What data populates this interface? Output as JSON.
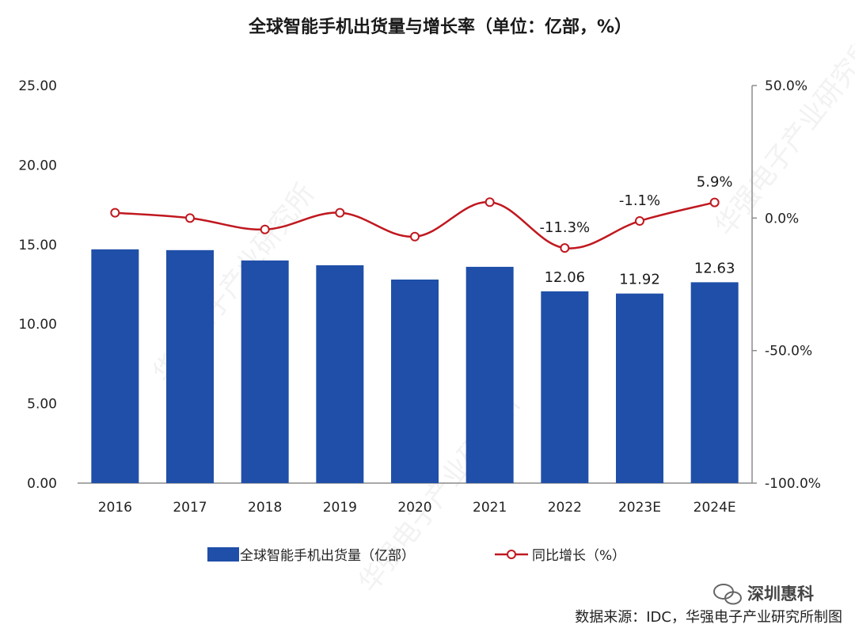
{
  "chart_data": {
    "type": "bar",
    "title": "全球智能手机出货量与增长率（单位：亿部，%）",
    "categories": [
      "2016",
      "2017",
      "2018",
      "2019",
      "2020",
      "2021",
      "2022",
      "2023E",
      "2024E"
    ],
    "series": [
      {
        "name": "全球智能手机出货量（亿部）",
        "type": "bar",
        "axis": "left",
        "color": "#1f4fa8",
        "values": [
          14.7,
          14.65,
          14.0,
          13.7,
          12.8,
          13.6,
          12.06,
          11.92,
          12.63
        ],
        "labels": [
          "",
          "",
          "",
          "",
          "",
          "",
          "12.06",
          "11.92",
          "12.63"
        ]
      },
      {
        "name": "同比增长（%）",
        "type": "line",
        "axis": "right",
        "color": "#c0181f",
        "values": [
          2.0,
          0.0,
          -4.3,
          2.0,
          -7.0,
          6.0,
          -11.3,
          -1.1,
          5.9
        ],
        "labels": [
          "",
          "",
          "",
          "",
          "",
          "",
          "-11.3%",
          "-1.1%",
          "5.9%"
        ]
      }
    ],
    "y_left": {
      "ylim": [
        0,
        25
      ],
      "ticks": [
        0,
        5,
        10,
        15,
        20,
        25
      ],
      "tick_labels": [
        "0.00",
        "5.00",
        "10.00",
        "15.00",
        "20.00",
        "25.00"
      ]
    },
    "y_right": {
      "ylim": [
        -100,
        50
      ],
      "ticks": [
        -100,
        -50,
        0,
        50
      ],
      "tick_labels": [
        "-100.0%",
        "-50.0%",
        "0.0%",
        "50.0%"
      ]
    },
    "legend_position": "bottom",
    "grid": false
  },
  "source_text": "数据来源：IDC，华强电子产业研究所制图",
  "watermark_text": "华强电子产业研究所",
  "brand": {
    "name": "深圳惠科",
    "icon": "wechat-icon"
  }
}
